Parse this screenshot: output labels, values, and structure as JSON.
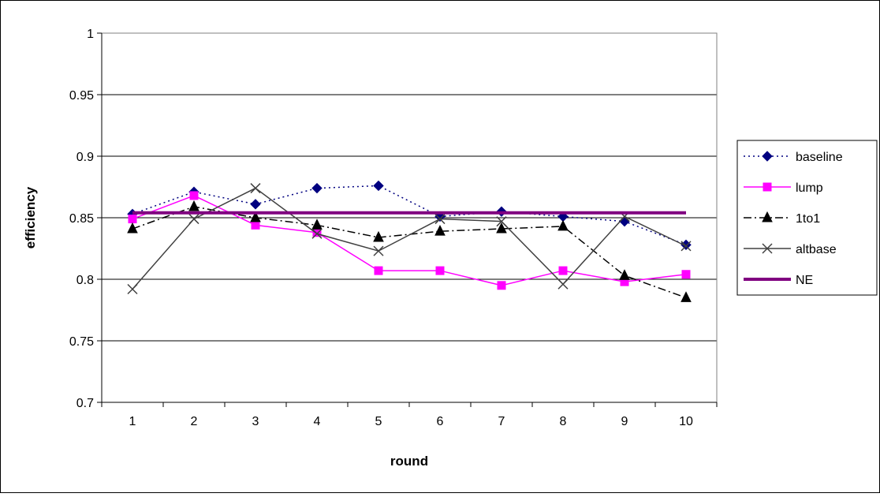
{
  "chart_data": {
    "type": "line",
    "title": "",
    "xlabel": "round",
    "ylabel": "efficiency",
    "categories": [
      "1",
      "2",
      "3",
      "4",
      "5",
      "6",
      "7",
      "8",
      "9",
      "10"
    ],
    "ylim": [
      0.7,
      1
    ],
    "yticks": [
      0.7,
      0.75,
      0.8,
      0.85,
      0.9,
      0.95,
      1
    ],
    "ytick_labels": [
      "0.7",
      "0.75",
      "0.8",
      "0.85",
      "0.9",
      "0.95",
      "1"
    ],
    "grid": "horizontal major gridlines",
    "legend_position": "right",
    "series": [
      {
        "name": "baseline",
        "color": "#000080",
        "dash": "dotted",
        "marker": "diamond",
        "values": [
          0.853,
          0.871,
          0.861,
          0.874,
          0.876,
          0.851,
          0.855,
          0.851,
          0.847,
          0.828
        ]
      },
      {
        "name": "lump",
        "color": "#ff00ff",
        "dash": "solid",
        "marker": "square",
        "values": [
          0.849,
          0.868,
          0.844,
          0.838,
          0.807,
          0.807,
          0.795,
          0.807,
          0.798,
          0.804
        ]
      },
      {
        "name": "1to1",
        "color": "#000000",
        "dash": "dash-dot",
        "marker": "triangle",
        "values": [
          0.841,
          0.859,
          0.85,
          0.844,
          0.834,
          0.839,
          0.841,
          0.843,
          0.803,
          0.785
        ]
      },
      {
        "name": "altbase",
        "color": "#404040",
        "dash": "solid",
        "marker": "x",
        "values": [
          0.792,
          0.849,
          0.874,
          0.837,
          0.823,
          0.849,
          0.847,
          0.796,
          0.851,
          0.827
        ]
      },
      {
        "name": "NE",
        "color": "#800080",
        "dash": "solid-thick",
        "marker": "none",
        "values": [
          0.854,
          0.854,
          0.854,
          0.854,
          0.854,
          0.854,
          0.854,
          0.854,
          0.854,
          0.854
        ]
      }
    ]
  }
}
